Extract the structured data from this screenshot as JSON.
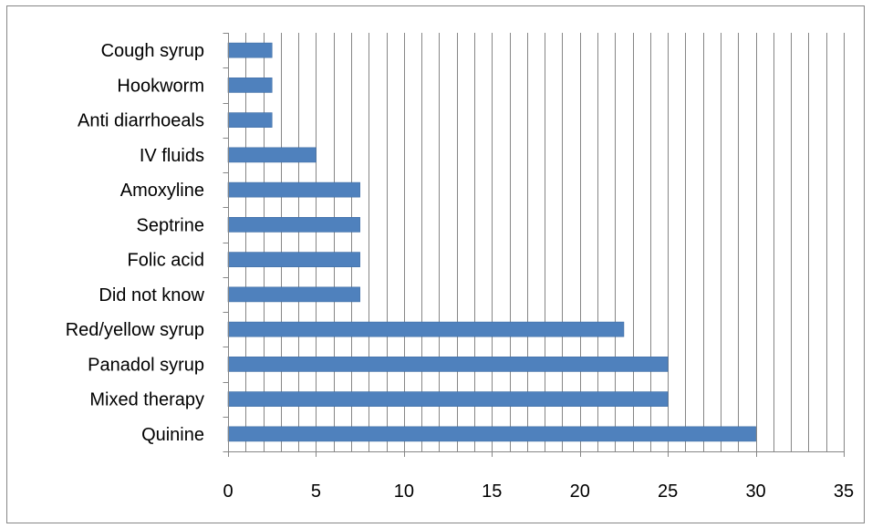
{
  "chart_data": {
    "type": "bar",
    "orientation": "horizontal",
    "categories": [
      "Quinine",
      "Mixed therapy",
      "Panadol syrup",
      "Red/yellow syrup",
      "Did not know",
      "Folic acid",
      "Septrine",
      "Amoxyline",
      "IV fluids",
      "Anti diarrhoeals",
      "Hookworm",
      "Cough syrup"
    ],
    "values": [
      30,
      25,
      25,
      22.5,
      7.5,
      7.5,
      7.5,
      7.5,
      5,
      2.5,
      2.5,
      2.5
    ],
    "xlim": [
      0,
      35
    ],
    "x_ticks": [
      "0",
      "5",
      "10",
      "15",
      "20",
      "25",
      "30",
      "35"
    ],
    "grid": "vertical",
    "legend": "none",
    "colors": {
      "bar": "#4F81BD",
      "bar_edge": "#3C6BA3",
      "grid": "#868686",
      "axis": "#868686",
      "frame": "#868686"
    }
  }
}
